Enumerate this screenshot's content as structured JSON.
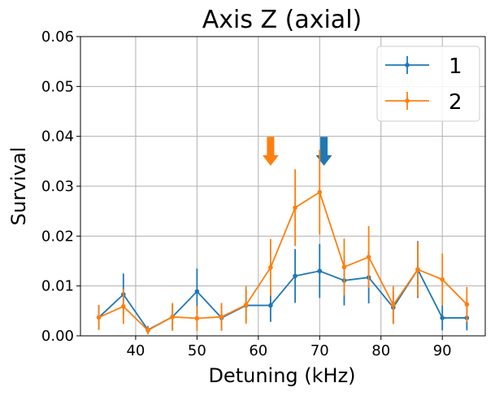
{
  "chart_data": {
    "type": "line",
    "title": "Axis Z (axial)",
    "xlabel": "Detuning (kHz)",
    "ylabel": "Survival",
    "xlim": [
      31,
      97
    ],
    "ylim": [
      0,
      0.06
    ],
    "xticks": [
      40,
      50,
      60,
      70,
      80,
      90
    ],
    "yticks": [
      0.0,
      0.01,
      0.02,
      0.03,
      0.04,
      0.05,
      0.06
    ],
    "xtick_labels": [
      "40",
      "50",
      "60",
      "70",
      "80",
      "90"
    ],
    "ytick_labels": [
      "0.00",
      "0.01",
      "0.02",
      "0.03",
      "0.04",
      "0.05",
      "0.06"
    ],
    "grid": true,
    "legend_position": "top-right",
    "series": [
      {
        "name": "1",
        "color": "#1f77b4",
        "x": [
          34,
          38,
          42,
          46,
          50,
          54,
          58,
          62,
          66,
          70,
          74,
          78,
          82,
          86,
          90,
          94
        ],
        "y": [
          0.0037,
          0.0083,
          0.0012,
          0.0038,
          0.0089,
          0.0036,
          0.0061,
          0.0061,
          0.012,
          0.013,
          0.0111,
          0.0117,
          0.0057,
          0.0133,
          0.0036,
          0.0036
        ],
        "err": [
          0.0025,
          0.0042,
          0.0008,
          0.0025,
          0.0046,
          0.0025,
          0.0033,
          0.0033,
          0.0054,
          0.0054,
          0.005,
          0.0052,
          0.0033,
          0.0057,
          0.0025,
          0.0025
        ]
      },
      {
        "name": "2",
        "color": "#ff7f0e",
        "x": [
          34,
          38,
          42,
          46,
          50,
          54,
          58,
          62,
          66,
          70,
          74,
          78,
          82,
          86,
          90,
          94
        ],
        "y": [
          0.0037,
          0.0059,
          0.0011,
          0.0038,
          0.0035,
          0.0038,
          0.0062,
          0.0137,
          0.0257,
          0.0288,
          0.0138,
          0.0158,
          0.0062,
          0.0133,
          0.0113,
          0.0063
        ],
        "err": [
          0.0025,
          0.0035,
          0.0008,
          0.0028,
          0.0025,
          0.0028,
          0.0038,
          0.0057,
          0.0077,
          0.0085,
          0.0057,
          0.0062,
          0.0038,
          0.0055,
          0.0052,
          0.0035
        ]
      }
    ],
    "markers": [
      {
        "x": 62,
        "y_top": 0.0399,
        "y_tip": 0.0341,
        "color": "#ff7f0e"
      },
      {
        "x": 70.7,
        "y_top": 0.0399,
        "y_tip": 0.0341,
        "color": "#1f77b4"
      }
    ]
  }
}
